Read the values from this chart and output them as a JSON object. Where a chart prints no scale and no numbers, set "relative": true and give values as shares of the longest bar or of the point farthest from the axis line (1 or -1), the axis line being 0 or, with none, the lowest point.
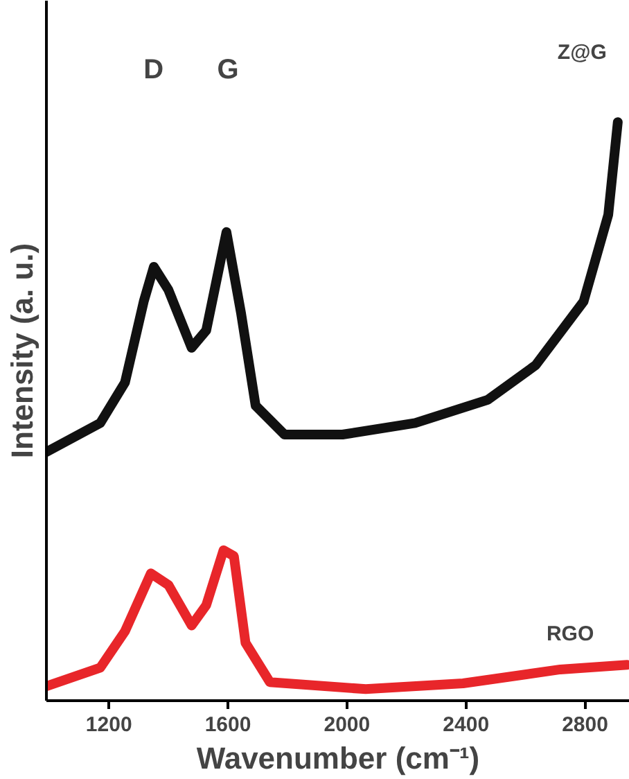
{
  "chart_data": {
    "type": "line",
    "relative": true,
    "xlabel": "Wavenumber (cm⁻¹)",
    "ylabel": "Intensity (a. u.)",
    "xlim": [
      990,
      2950
    ],
    "xticks": [
      1200,
      1600,
      2000,
      2400,
      2800
    ],
    "grid": false,
    "marker": "none",
    "line_style": "solid",
    "series": [
      {
        "color": "#111111",
        "x": [
          990,
          1171,
          1254,
          1317,
          1351,
          1400,
          1478,
          1527,
          1595,
          1644,
          1693,
          1790,
          1985,
          2229,
          2473,
          2634,
          2795,
          2878,
          2910
        ],
        "values": [
          0.43,
          0.48,
          0.55,
          0.69,
          0.75,
          0.71,
          0.61,
          0.64,
          0.81,
          0.67,
          0.51,
          0.46,
          0.46,
          0.48,
          0.52,
          0.58,
          0.69,
          0.84,
          1.0
        ]
      },
      {
        "color": "#e8262a",
        "x": [
          990,
          1171,
          1254,
          1341,
          1400,
          1478,
          1527,
          1585,
          1620,
          1659,
          1741,
          2063,
          2390,
          2717,
          2942
        ],
        "values": [
          0.025,
          0.057,
          0.12,
          0.22,
          0.2,
          0.13,
          0.165,
          0.26,
          0.25,
          0.1,
          0.032,
          0.02,
          0.03,
          0.054,
          0.062
        ]
      }
    ],
    "annotations": [
      "D",
      "G",
      "Z@G",
      "RGO"
    ]
  }
}
